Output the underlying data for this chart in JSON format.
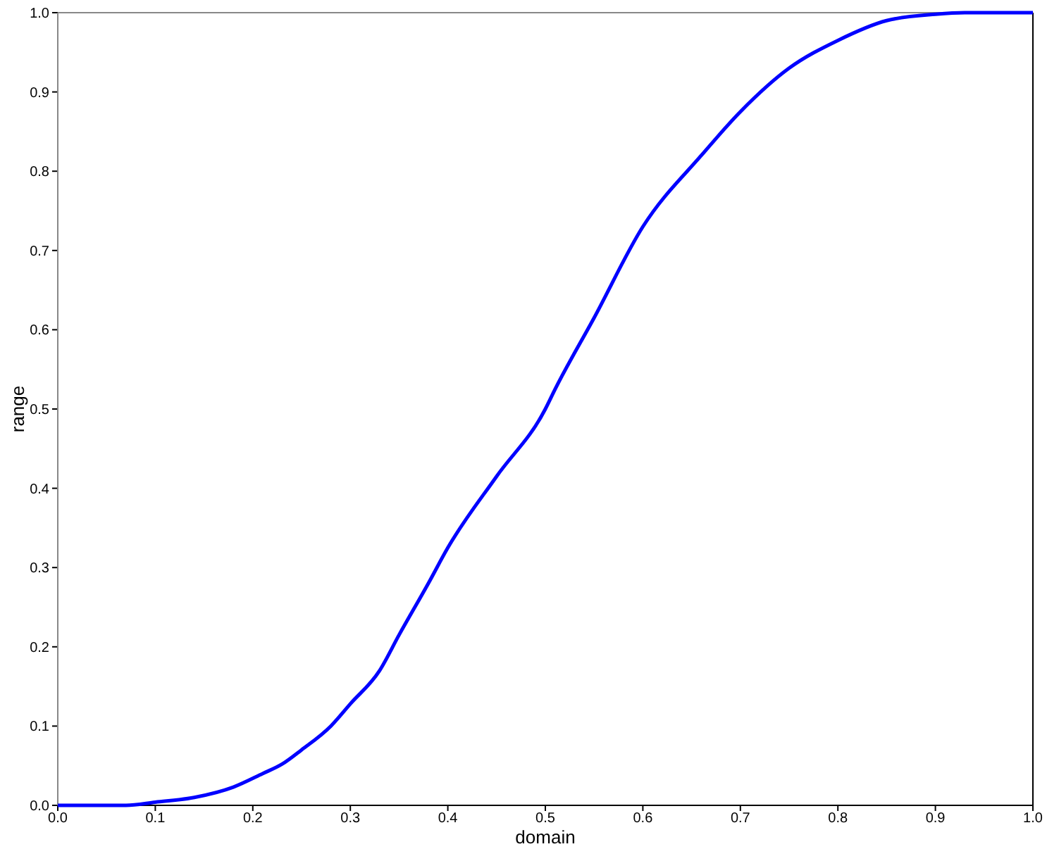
{
  "chart_data": {
    "type": "line",
    "xlabel": "domain",
    "ylabel": "range",
    "x": [
      0,
      0.07,
      0.1,
      0.14,
      0.18,
      0.21,
      0.23,
      0.25,
      0.28,
      0.3,
      0.33,
      0.35,
      0.38,
      0.4,
      0.45,
      0.5,
      0.51,
      0.55,
      0.6,
      0.66,
      0.7,
      0.75,
      0.8,
      0.85,
      0.9,
      0.93,
      1.0
    ],
    "series": [
      {
        "color": "#0000ff",
        "values": [
          0,
          0,
          0.004,
          0.01,
          0.023,
          0.04,
          0.052,
          0.07,
          0.1,
          0.128,
          0.17,
          0.215,
          0.28,
          0.325,
          0.415,
          0.5,
          0.525,
          0.615,
          0.73,
          0.82,
          0.875,
          0.93,
          0.965,
          0.99,
          0.998,
          1.0,
          1.0
        ]
      }
    ],
    "xlim": [
      0,
      1
    ],
    "ylim": [
      0,
      1
    ],
    "xticks": [
      {
        "value": 0,
        "label": "0.0"
      },
      0.1,
      0.2,
      0.3,
      0.4,
      0.5,
      0.6,
      0.7,
      0.8,
      0.9,
      {
        "value": 1,
        "label": "1.0"
      }
    ],
    "yticks": [
      {
        "value": 0,
        "label": "0.0"
      },
      0.1,
      0.2,
      0.3,
      0.4,
      0.5,
      0.6,
      0.7,
      0.8,
      0.9,
      {
        "value": 1,
        "label": "1.0"
      }
    ],
    "grid": false,
    "marker": "none",
    "line_style": "solid"
  }
}
